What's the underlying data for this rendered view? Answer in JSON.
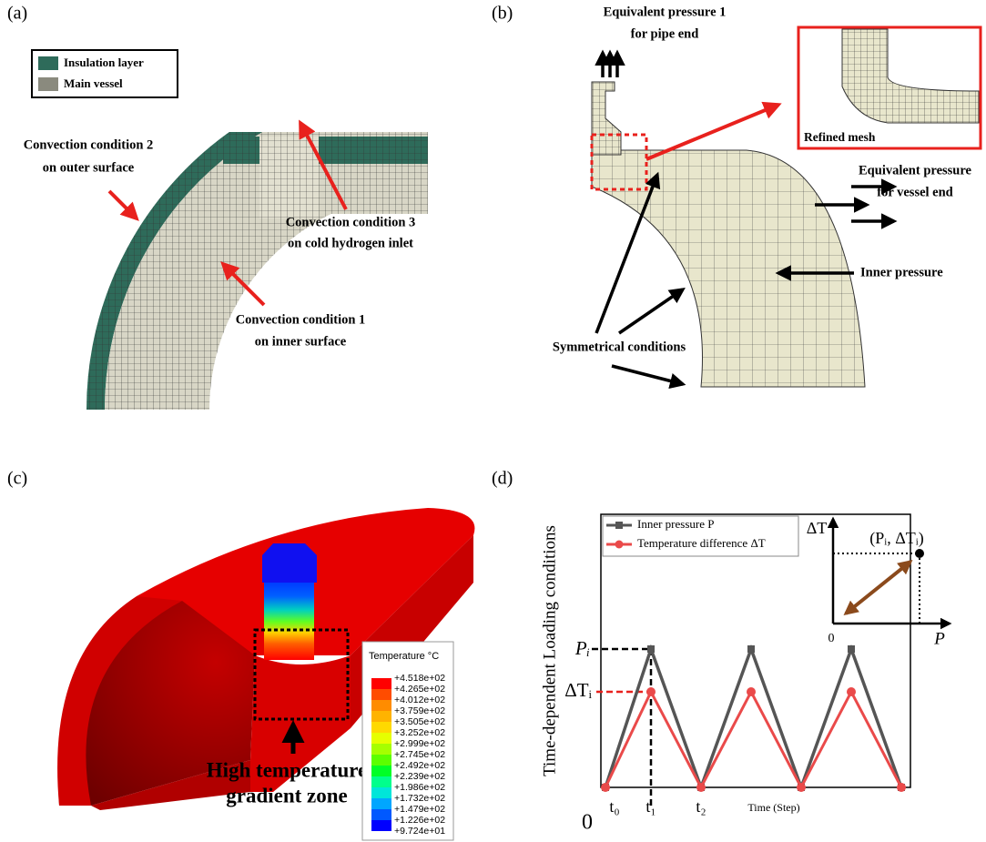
{
  "panel_a": {
    "label": "(a)",
    "legend": [
      "Insulation layer",
      "Main vessel"
    ],
    "annotations": [
      [
        "Convection condition 2",
        "on outer surface"
      ],
      [
        "Convection condition 3",
        "on cold hydrogen inlet"
      ],
      [
        "Convection condition 1",
        "on inner surface"
      ]
    ]
  },
  "panel_b": {
    "label": "(b)",
    "annotations": [
      [
        "Equivalent pressure 1",
        "for pipe end"
      ],
      [
        "Equivalent pressure",
        "for vessel end"
      ],
      [
        "Inner pressure"
      ],
      [
        "Symmetrical conditions"
      ],
      [
        "Refined mesh"
      ]
    ]
  },
  "panel_c": {
    "label": "(c)",
    "colorbar_title": "Temperature °C",
    "colorbar_labels": [
      "+4.518e+02",
      "+4.265e+02",
      "+4.012e+02",
      "+3.759e+02",
      "+3.505e+02",
      "+3.252e+02",
      "+2.999e+02",
      "+2.745e+02",
      "+2.492e+02",
      "+2.239e+02",
      "+1.986e+02",
      "+1.732e+02",
      "+1.479e+02",
      "+1.226e+02",
      "+9.724e+01"
    ],
    "annotation": [
      "High temperature",
      "gradient zone"
    ]
  },
  "panel_d": {
    "label": "(d)",
    "y_axis_title": "Time-dependent Loading conditions",
    "x_axis_title": "Time (Step)",
    "origin": "0",
    "x_ticks": [
      "t₀",
      "t₁",
      "t₂"
    ],
    "y_ticks": [
      "Pᵢ",
      "ΔTᵢ"
    ],
    "legend": [
      "Inner pressure P",
      "Temperature difference ΔT"
    ],
    "inset": {
      "y_label": "ΔT",
      "x_label": "P",
      "origin": "0",
      "point_label": "(Pᵢ, ΔTᵢ)"
    }
  }
}
